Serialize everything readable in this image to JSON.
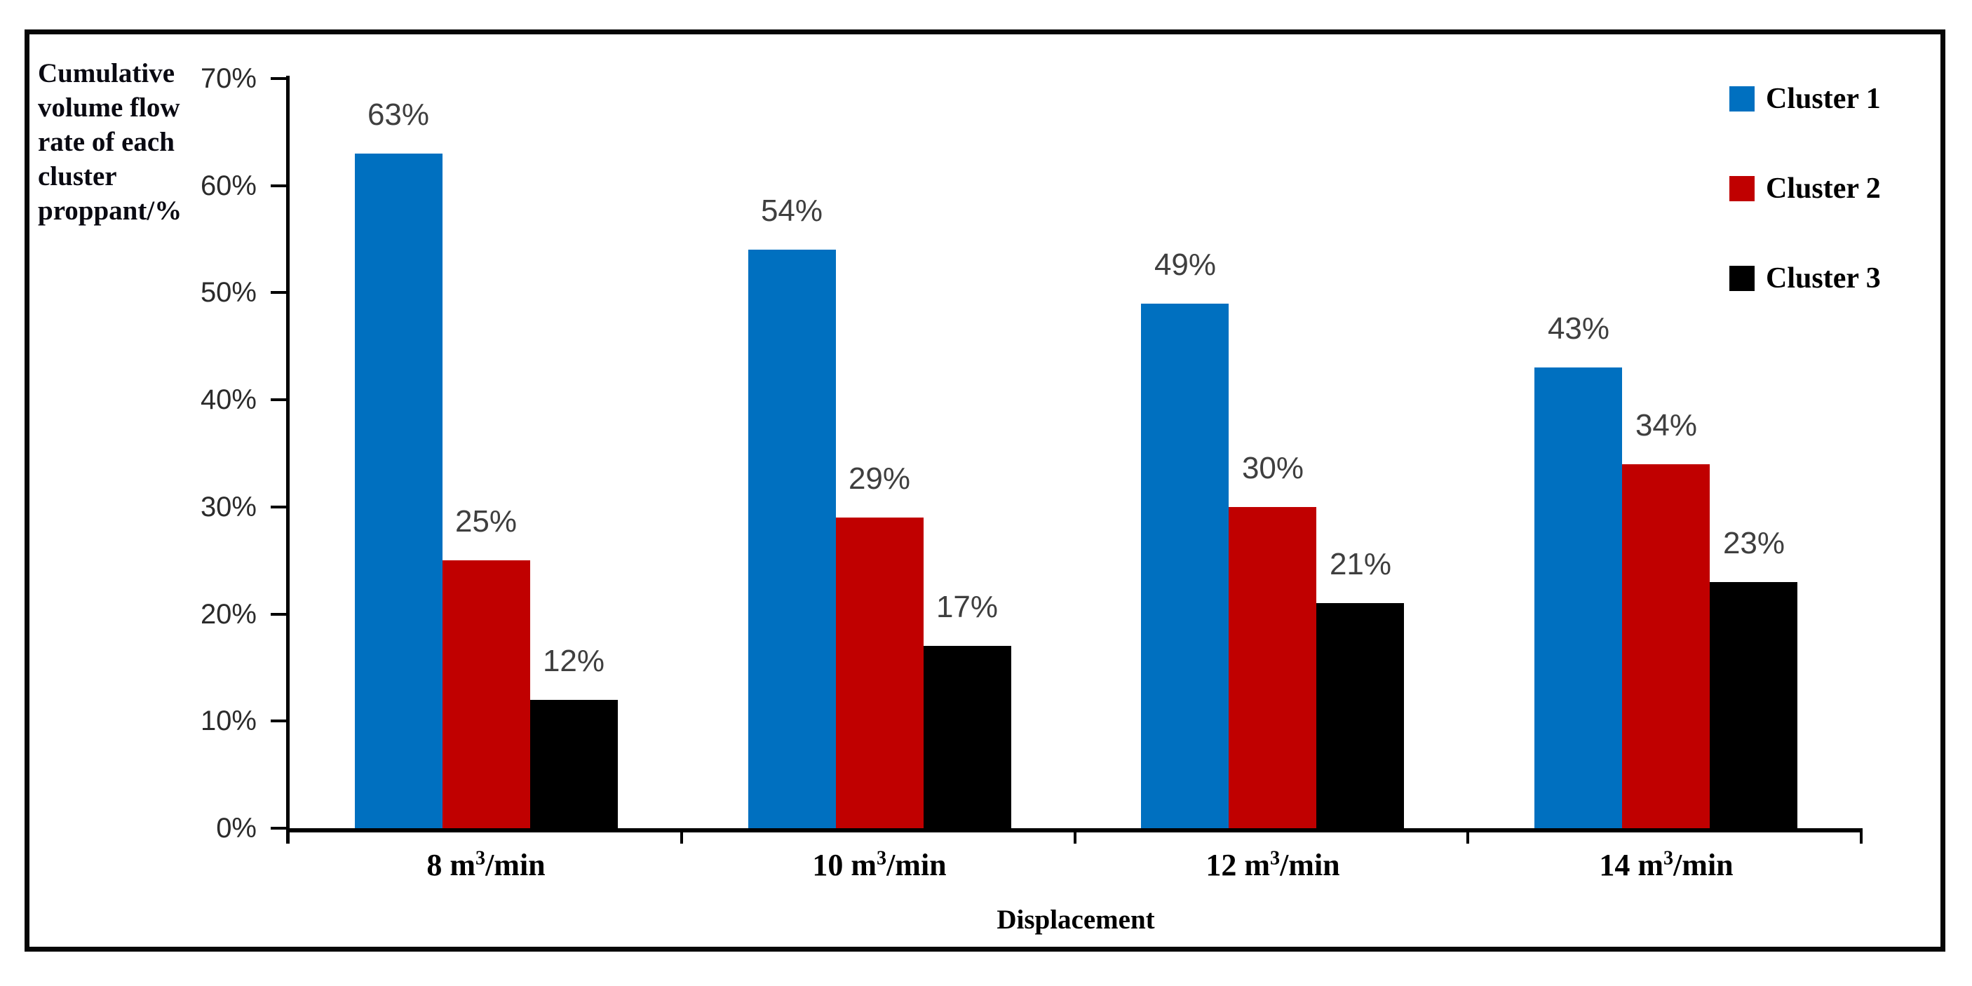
{
  "figure": {
    "y_axis_title_lines": [
      "Cumulative",
      "volume flow",
      "rate of each",
      "cluster",
      "proppant/%"
    ],
    "x_axis_title": "Displacement"
  },
  "legend": {
    "items": [
      {
        "label": "Cluster 1",
        "color": "#0070C0"
      },
      {
        "label": "Cluster 2",
        "color": "#C00000"
      },
      {
        "label": "Cluster 3",
        "color": "#000000"
      }
    ]
  },
  "colors": {
    "cluster1": "#0070C0",
    "cluster2": "#C00000",
    "cluster3": "#000000",
    "axis": "#000000",
    "value_label": "#3F3F3F",
    "tick_label": "#2B2B2B"
  },
  "chart_data": {
    "type": "bar",
    "xlabel": "Displacement",
    "ylabel": "Cumulative volume flow rate of each cluster proppant/%",
    "categories": [
      "8 m³/min",
      "10 m³/min",
      "12 m³/min",
      "14 m³/min"
    ],
    "category_parts": [
      {
        "base": "8 m",
        "sup": "3",
        "rest": "/min"
      },
      {
        "base": "10 m",
        "sup": "3",
        "rest": "/min"
      },
      {
        "base": "12 m",
        "sup": "3",
        "rest": "/min"
      },
      {
        "base": "14 m",
        "sup": "3",
        "rest": "/min"
      }
    ],
    "y_ticks": [
      "70%",
      "60%",
      "50%",
      "40%",
      "30%",
      "20%",
      "10%",
      "0%"
    ],
    "ylim": [
      0,
      70
    ],
    "grid": false,
    "legend_position": "top-right",
    "series": [
      {
        "name": "Cluster 1",
        "color": "#0070C0",
        "values": [
          63,
          54,
          49,
          43
        ],
        "labels": [
          "63%",
          "54%",
          "49%",
          "43%"
        ]
      },
      {
        "name": "Cluster 2",
        "color": "#C00000",
        "values": [
          25,
          29,
          30,
          34
        ],
        "labels": [
          "25%",
          "29%",
          "30%",
          "34%"
        ]
      },
      {
        "name": "Cluster 3",
        "color": "#000000",
        "values": [
          12,
          17,
          21,
          23
        ],
        "labels": [
          "12%",
          "17%",
          "21%",
          "23%"
        ]
      }
    ]
  }
}
